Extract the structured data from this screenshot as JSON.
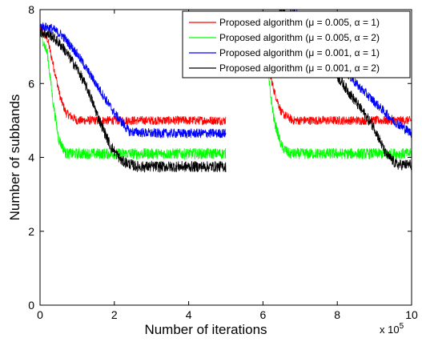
{
  "colors": {
    "red": "#ff0000",
    "green": "#00ff00",
    "blue": "#0000ff",
    "black": "#000000"
  },
  "chart_data": {
    "type": "line",
    "title": "",
    "xlabel": "Number of iterations",
    "ylabel": "Number of subbands",
    "x_multiplier_label": "x 10",
    "x_multiplier_exponent": "5",
    "xlim": [
      0,
      10
    ],
    "ylim": [
      0,
      8
    ],
    "x_ticks": [
      0,
      2,
      4,
      6,
      8,
      10
    ],
    "y_ticks": [
      0,
      2,
      4,
      6,
      8
    ],
    "grid": false,
    "legend_position": "top-right",
    "blank_interval": [
      5.0,
      5.9
    ],
    "series": [
      {
        "name": "Proposed algorithm (μ = 0.005, α = 1)",
        "color": "#ff0000",
        "noise": 0.12,
        "x": [
          0,
          0.2,
          0.4,
          0.55,
          0.7,
          1.0,
          2.0,
          3.0,
          4.0,
          5.0,
          5.9,
          6.1,
          6.3,
          6.5,
          6.8,
          7.5,
          8.5,
          9.5,
          10
        ],
        "y": [
          7.5,
          7.2,
          6.3,
          5.6,
          5.2,
          5.0,
          5.0,
          5.0,
          5.0,
          5.0,
          7.5,
          6.6,
          5.8,
          5.2,
          5.0,
          5.0,
          5.0,
          5.0,
          5.0
        ]
      },
      {
        "name": "Proposed algorithm (μ = 0.005, α = 2)",
        "color": "#00ff00",
        "noise": 0.15,
        "x": [
          0,
          0.2,
          0.35,
          0.5,
          0.7,
          1.0,
          2.0,
          3.0,
          4.0,
          5.0,
          5.9,
          6.1,
          6.3,
          6.5,
          6.7,
          7.5,
          8.5,
          9.5,
          10
        ],
        "y": [
          7.4,
          6.8,
          5.5,
          4.5,
          4.1,
          4.1,
          4.1,
          4.1,
          4.1,
          4.1,
          7.4,
          6.5,
          5.0,
          4.3,
          4.1,
          4.1,
          4.1,
          4.1,
          4.1
        ]
      },
      {
        "name": "Proposed algorithm (μ = 0.001, α = 1)",
        "color": "#0000ff",
        "noise": 0.13,
        "x": [
          0,
          0.3,
          0.6,
          1.0,
          1.5,
          2.0,
          2.4,
          3.0,
          4.0,
          5.0,
          5.9,
          6.5,
          7.0,
          7.5,
          8.0,
          8.5,
          9.0,
          9.5,
          10
        ],
        "y": [
          7.55,
          7.5,
          7.3,
          6.8,
          6.0,
          5.2,
          4.7,
          4.65,
          4.65,
          4.65,
          8.5,
          8.3,
          7.8,
          7.2,
          6.6,
          6.0,
          5.5,
          5.0,
          4.65
        ]
      },
      {
        "name": "Proposed algorithm (μ = 0.001, α = 2)",
        "color": "#000000",
        "noise": 0.15,
        "x": [
          0,
          0.3,
          0.6,
          1.0,
          1.3,
          1.6,
          1.9,
          2.2,
          2.6,
          3.0,
          4.0,
          5.0,
          5.9,
          6.5,
          7.0,
          7.5,
          8.0,
          8.5,
          9.0,
          9.3,
          9.6,
          10
        ],
        "y": [
          7.4,
          7.3,
          7.0,
          6.4,
          5.8,
          5.0,
          4.3,
          3.9,
          3.75,
          3.75,
          3.75,
          3.75,
          8.5,
          8.0,
          7.5,
          6.9,
          6.2,
          5.5,
          4.8,
          4.1,
          3.8,
          3.8
        ]
      }
    ]
  }
}
